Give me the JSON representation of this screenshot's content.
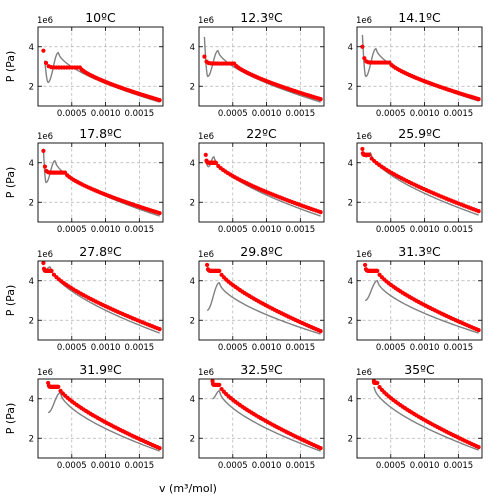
{
  "chart_data": {
    "type": "scatter",
    "grid": true,
    "xlim": [
      0.0,
      0.00185
    ],
    "ylim": [
      1.0,
      5.0
    ],
    "xticks": [
      0.0005,
      0.001,
      0.0015
    ],
    "xtick_labels": [
      "0.0005",
      "0.0010",
      "0.0015"
    ],
    "yticks": [
      2,
      4
    ],
    "ytick_labels": [
      "2",
      "4"
    ],
    "y_exponent": "1e6",
    "xlabel": "v (m³/mol)",
    "ylabel": "P (Pa)",
    "series_colors": {
      "experimental": "#ff0000",
      "model": "#808080"
    },
    "panels": [
      {
        "title": "10ºC",
        "temperature_c": 10.0,
        "experimental": {
          "type": "flat-then-decay",
          "v_start": 8e-05,
          "p_start": 3.8,
          "v_flat_end": 0.00062,
          "p_flat": 2.95,
          "v_end": 0.0018,
          "p_end": 1.3
        },
        "model": {
          "v_start": 0.0001,
          "p_start": 3.3,
          "v_min": 0.00015,
          "p_min": 2.2,
          "v_max": 0.0003,
          "p_max": 3.7,
          "v_end": 0.0018,
          "p_end": 1.2
        }
      },
      {
        "title": "12.3ºC",
        "temperature_c": 12.3,
        "experimental": {
          "type": "flat-then-decay",
          "v_start": 8e-05,
          "p_start": 3.5,
          "v_flat_end": 0.00052,
          "p_flat": 3.15,
          "v_end": 0.0018,
          "p_end": 1.35
        },
        "model": {
          "v_start": 8e-05,
          "p_start": 4.5,
          "v_min": 0.00013,
          "p_min": 2.5,
          "v_max": 0.00028,
          "p_max": 3.8,
          "v_end": 0.0018,
          "p_end": 1.2
        }
      },
      {
        "title": "14.1ºC",
        "temperature_c": 14.1,
        "experimental": {
          "type": "flat-then-decay",
          "v_start": 8e-05,
          "p_start": 4.0,
          "v_flat_end": 0.00048,
          "p_flat": 3.2,
          "v_end": 0.0018,
          "p_end": 1.35
        },
        "model": {
          "v_start": 8e-05,
          "p_start": 4.6,
          "v_min": 0.00013,
          "p_min": 2.5,
          "v_max": 0.00028,
          "p_max": 3.9,
          "v_end": 0.0018,
          "p_end": 1.25
        }
      },
      {
        "title": "17.8ºC",
        "temperature_c": 17.8,
        "experimental": {
          "type": "flat-then-decay",
          "v_start": 8e-05,
          "p_start": 4.6,
          "v_flat_end": 0.0004,
          "p_flat": 3.5,
          "v_end": 0.0018,
          "p_end": 1.45
        },
        "model": {
          "v_start": 8e-05,
          "p_start": 4.7,
          "v_min": 0.00012,
          "p_min": 3.0,
          "v_max": 0.00025,
          "p_max": 4.1,
          "v_end": 0.0018,
          "p_end": 1.3
        }
      },
      {
        "title": "22ºC",
        "temperature_c": 22.0,
        "experimental": {
          "type": "flat-then-decay",
          "v_start": 0.0001,
          "p_start": 4.4,
          "v_flat_end": 0.00025,
          "p_flat": 4.0,
          "v_end": 0.0018,
          "p_end": 1.5
        },
        "model": {
          "v_start": 0.0001,
          "p_start": 4.1,
          "v_min": 0.00014,
          "p_min": 3.8,
          "v_max": 0.00022,
          "p_max": 4.3,
          "v_end": 0.0018,
          "p_end": 1.3
        }
      },
      {
        "title": "25.9ºC",
        "temperature_c": 25.9,
        "experimental": {
          "type": "flat-then-decay",
          "v_start": 8e-05,
          "p_start": 4.7,
          "v_flat_end": 0.00018,
          "p_flat": 4.4,
          "v_end": 0.0018,
          "p_end": 1.55
        },
        "model": {
          "v_start": 0.0001,
          "p_start": 4.4,
          "v_min": 0.00014,
          "p_min": 4.3,
          "v_max": 0.0002,
          "p_max": 4.5,
          "v_end": 0.0018,
          "p_end": 1.35
        }
      },
      {
        "title": "27.8ºC",
        "temperature_c": 27.8,
        "experimental": {
          "type": "flat-then-decay",
          "v_start": 8e-05,
          "p_start": 4.9,
          "v_flat_end": 0.0002,
          "p_flat": 4.5,
          "v_end": 0.0018,
          "p_end": 1.55
        },
        "model": {
          "v_start": 8e-05,
          "p_start": 4.6,
          "v_min": 0.0001,
          "p_min": 4.55,
          "v_max": 0.00018,
          "p_max": 4.7,
          "v_end": 0.0018,
          "p_end": 1.35
        }
      },
      {
        "title": "29.8ºC",
        "temperature_c": 29.8,
        "experimental": {
          "type": "flat-then-decay",
          "v_start": 0.00012,
          "p_start": 4.8,
          "v_flat_end": 0.0003,
          "p_flat": 4.5,
          "v_end": 0.0018,
          "p_end": 1.45
        },
        "model": {
          "v_start": 0.00012,
          "p_start": 2.5,
          "v_min": 0.00012,
          "p_min": 2.5,
          "v_max": 0.0003,
          "p_max": 3.9,
          "v_end": 0.0018,
          "p_end": 1.3
        }
      },
      {
        "title": "31.3ºC",
        "temperature_c": 31.3,
        "experimental": {
          "type": "flat-then-decay",
          "v_start": 0.00012,
          "p_start": 4.8,
          "v_flat_end": 0.0003,
          "p_flat": 4.5,
          "v_end": 0.0018,
          "p_end": 1.5
        },
        "model": {
          "v_start": 0.00012,
          "p_start": 3.0,
          "v_min": 0.00012,
          "p_min": 3.0,
          "v_max": 0.0003,
          "p_max": 4.0,
          "v_end": 0.0018,
          "p_end": 1.35
        }
      },
      {
        "title": "31.9ºC",
        "temperature_c": 31.9,
        "experimental": {
          "type": "flat-then-decay",
          "v_start": 0.00015,
          "p_start": 4.8,
          "v_flat_end": 0.0003,
          "p_flat": 4.6,
          "v_end": 0.0018,
          "p_end": 1.5
        },
        "model": {
          "v_start": 0.00015,
          "p_start": 3.3,
          "v_min": 0.00015,
          "p_min": 3.3,
          "v_max": 0.00033,
          "p_max": 4.3,
          "v_end": 0.0018,
          "p_end": 1.35
        }
      },
      {
        "title": "32.5ºC",
        "temperature_c": 32.5,
        "experimental": {
          "type": "flat-then-decay",
          "v_start": 0.0002,
          "p_start": 4.9,
          "v_flat_end": 0.0003,
          "p_flat": 4.7,
          "v_end": 0.0018,
          "p_end": 1.5
        },
        "model": {
          "v_start": 0.0002,
          "p_start": 4.0,
          "v_min": 0.0002,
          "p_min": 4.0,
          "v_max": 0.0003,
          "p_max": 4.4,
          "v_end": 0.0018,
          "p_end": 1.35
        }
      },
      {
        "title": "35ºC",
        "temperature_c": 35.0,
        "experimental": {
          "type": "flat-then-decay",
          "v_start": 0.00025,
          "p_start": 4.9,
          "v_flat_end": 0.0003,
          "p_flat": 4.8,
          "v_end": 0.0018,
          "p_end": 1.55
        },
        "model": {
          "v_start": 0.00025,
          "p_start": 4.6,
          "v_min": 0.00025,
          "p_min": 4.6,
          "v_max": 0.00025,
          "p_max": 4.6,
          "v_end": 0.0018,
          "p_end": 1.4
        }
      }
    ]
  }
}
